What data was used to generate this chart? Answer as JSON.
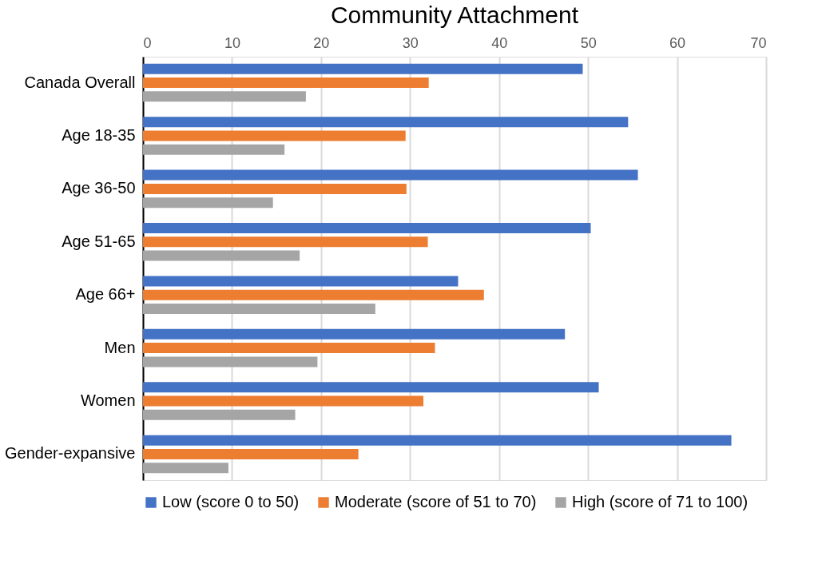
{
  "chart_data": {
    "type": "bar",
    "orientation": "horizontal",
    "title": "Community Attachment",
    "categories": [
      "Canada Overall",
      "Age 18-35",
      "Age 36-50",
      "Age 51-65",
      "Age 66+",
      "Men",
      "Women",
      "Gender-expansive"
    ],
    "series": [
      {
        "name": "Low (score 0 to 50)",
        "color": "#4472c4",
        "values": [
          49.4,
          54.5,
          55.6,
          50.3,
          35.4,
          47.4,
          51.2,
          66.1
        ]
      },
      {
        "name": "Moderate (score of 51 to 70)",
        "color": "#ed7d31",
        "values": [
          32.1,
          29.5,
          29.6,
          32.0,
          38.3,
          32.8,
          31.5,
          24.2
        ]
      },
      {
        "name": "High (score of 71 to 100)",
        "color": "#a5a5a5",
        "values": [
          18.3,
          15.9,
          14.6,
          17.6,
          26.1,
          19.6,
          17.1,
          9.6
        ]
      }
    ],
    "xlim": [
      0,
      70
    ],
    "xticks": [
      0,
      10,
      20,
      30,
      40,
      50,
      60,
      70
    ],
    "grid": "x",
    "legend": "bottom"
  }
}
